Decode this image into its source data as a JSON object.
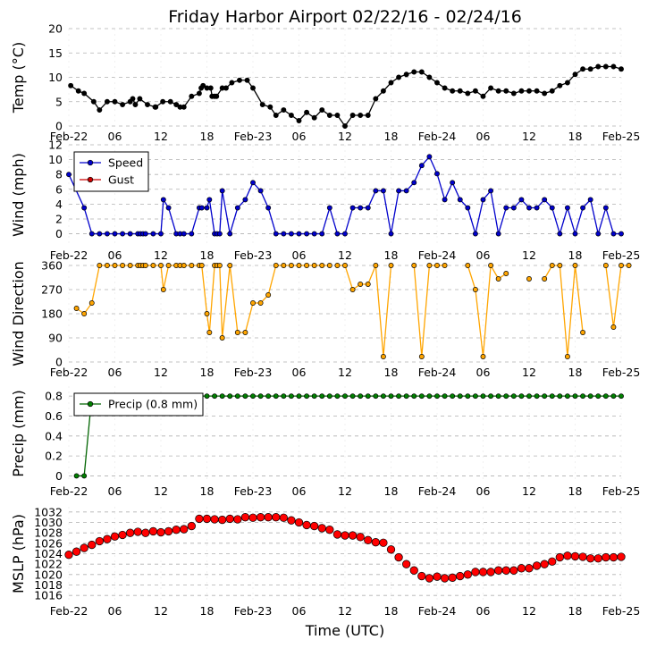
{
  "title": "Friday Harbor Airport 02/22/16 - 02/24/16",
  "xlabel": "Time (UTC)",
  "x_ticks": [
    "Feb-22",
    "06",
    "12",
    "18",
    "Feb-23",
    "06",
    "12",
    "18",
    "Feb-24",
    "06",
    "12",
    "18",
    "Feb-25"
  ],
  "x_range_hours": [
    0,
    72
  ],
  "chart_data": [
    {
      "type": "line",
      "ylabel": "Temp (°C)",
      "ylim": [
        0,
        20
      ],
      "yticks": [
        0,
        5,
        10,
        15,
        20
      ],
      "grid": true,
      "series": [
        {
          "color": "#000000",
          "marker_color": "#000000",
          "x": [
            0.25,
            1.25,
            2.0,
            3.25,
            4.0,
            5.0,
            6.0,
            7.0,
            8.0,
            8.33,
            8.67,
            9.25,
            10.25,
            11.25,
            11.33,
            12.25,
            13.25,
            14.0,
            14.5,
            15.0,
            16.0,
            17.0,
            17.25,
            17.5,
            18.0,
            18.5,
            18.67,
            19.0,
            19.25,
            20.0,
            20.5,
            21.25,
            22.25,
            23.25,
            24.0,
            25.25,
            26.25,
            27.0,
            28.0,
            29.0,
            30.0,
            31.0,
            32.0,
            33.0,
            34.0,
            35.0,
            36.0,
            37.0,
            38.0,
            39.0,
            40.0,
            41.0,
            42.0,
            43.0,
            44.0,
            45.0,
            46.0,
            47.0,
            48.0,
            49.0,
            50.0,
            51.0,
            52.0,
            53.0,
            54.0,
            55.0,
            56.0,
            57.0,
            58.0,
            59.0,
            60.0,
            61.0,
            62.0,
            63.0,
            64.0,
            65.0,
            66.0,
            67.0,
            68.0,
            69.0,
            70.0,
            71.0,
            72.0
          ],
          "y": [
            8.3,
            7.2,
            6.7,
            5.0,
            3.3,
            5.0,
            5.0,
            4.4,
            5.0,
            5.6,
            4.4,
            5.6,
            4.4,
            3.9,
            3.9,
            5.0,
            5.0,
            4.4,
            3.9,
            3.9,
            6.1,
            6.7,
            7.8,
            8.3,
            7.8,
            7.8,
            6.1,
            6.1,
            6.1,
            7.8,
            7.8,
            8.9,
            9.4,
            9.4,
            7.8,
            4.4,
            3.9,
            2.2,
            3.3,
            2.2,
            1.1,
            2.8,
            1.7,
            3.3,
            2.2,
            2.2,
            0.0,
            2.2,
            2.2,
            2.2,
            5.6,
            7.2,
            8.9,
            10.0,
            10.6,
            11.1,
            11.1,
            10.0,
            8.9,
            7.8,
            7.2,
            7.2,
            6.7,
            7.2,
            6.1,
            7.8,
            7.2,
            7.2,
            6.7,
            7.2,
            7.2,
            7.2,
            6.7,
            7.2,
            8.3,
            8.9,
            10.6,
            11.7,
            11.7,
            12.2,
            12.2,
            12.2,
            11.7
          ]
        }
      ]
    },
    {
      "type": "line",
      "ylabel": "Wind (mph)",
      "ylim": [
        -1.5,
        12
      ],
      "yticks": [
        0,
        2,
        4,
        6,
        8,
        10,
        12
      ],
      "grid": true,
      "legend": "top-left",
      "series": [
        {
          "name": "Speed",
          "color": "#0000cc",
          "marker_color": "#0000cc",
          "x": [
            0.0,
            2.0,
            3.0,
            4.0,
            5.0,
            6.0,
            7.0,
            8.0,
            9.0,
            9.33,
            9.67,
            10.0,
            11.0,
            12.0,
            12.33,
            13.0,
            14.0,
            14.5,
            15.0,
            16.0,
            17.0,
            17.33,
            18.0,
            18.33,
            19.0,
            19.33,
            19.67,
            20.0,
            21.0,
            22.0,
            23.0,
            24.0,
            25.0,
            26.0,
            27.0,
            28.0,
            29.0,
            30.0,
            31.0,
            32.0,
            33.0,
            34.0,
            35.0,
            36.0,
            37.0,
            38.0,
            39.0,
            40.0,
            41.0,
            42.0,
            43.0,
            44.0,
            45.0,
            46.0,
            47.0,
            48.0,
            49.0,
            50.0,
            51.0,
            52.0,
            53.0,
            54.0,
            55.0,
            56.0,
            57.0,
            58.0,
            59.0,
            60.0,
            61.0,
            62.0,
            63.0,
            64.0,
            65.0,
            66.0,
            67.0,
            68.0,
            69.0,
            70.0,
            71.0,
            72.0
          ],
          "y": [
            8.0,
            3.5,
            0,
            0,
            0,
            0,
            0,
            0,
            0,
            0,
            0,
            0,
            0,
            0,
            4.6,
            3.5,
            0,
            0,
            0,
            0,
            3.5,
            3.5,
            3.5,
            4.6,
            0,
            0,
            0,
            5.8,
            0,
            3.5,
            4.6,
            6.9,
            5.8,
            3.5,
            0,
            0,
            0,
            0,
            0,
            0,
            0,
            3.5,
            0,
            0,
            3.5,
            3.5,
            3.5,
            5.8,
            5.8,
            0,
            5.8,
            5.8,
            6.9,
            9.2,
            10.4,
            8.1,
            4.6,
            6.9,
            4.6,
            3.5,
            0,
            4.6,
            5.8,
            0,
            3.5,
            3.5,
            4.6,
            3.5,
            3.5,
            4.6,
            3.5,
            0,
            3.5,
            0,
            3.5,
            4.6,
            0,
            3.5,
            0,
            0
          ]
        },
        {
          "name": "Gust",
          "color": "#cc0000",
          "marker_color": "#cc0000",
          "x": [],
          "y": []
        }
      ]
    },
    {
      "type": "line",
      "ylabel": "Wind Direction",
      "ylim": [
        0,
        360
      ],
      "yticks": [
        0,
        90,
        180,
        270,
        360
      ],
      "grid": true,
      "series": [
        {
          "color": "#ffa500",
          "marker_color": "#ffa500",
          "x": [
            1.0,
            2.0,
            3.0,
            4.0,
            5.0,
            6.0,
            7.0,
            8.0,
            9.0,
            9.33,
            9.67,
            10.0,
            11.0,
            12.0,
            12.33,
            13.0,
            14.0,
            14.5,
            15.0,
            16.0,
            17.0,
            17.33,
            18.0,
            18.33,
            19.0,
            19.33,
            19.67,
            20.0,
            21.0,
            22.0,
            23.0,
            24.0,
            25.0,
            26.0,
            27.0,
            28.0,
            29.0,
            30.0,
            31.0,
            32.0,
            33.0,
            34.0,
            null,
            35.0,
            36.0,
            37.0,
            38.0,
            39.0,
            40.0,
            41.0,
            42.0,
            null,
            45.0,
            46.0,
            47.0,
            48.0,
            49.0,
            null,
            52.0,
            53.0,
            54.0,
            55.0,
            56.0,
            57.0,
            58.0,
            null,
            60.0,
            null,
            62.0,
            63.0,
            64.0,
            65.0,
            66.0,
            67.0,
            68.0,
            null,
            70.0,
            71.0,
            72.0,
            73.0
          ],
          "y": [
            200,
            180,
            220,
            360,
            360,
            360,
            360,
            360,
            360,
            360,
            360,
            360,
            360,
            360,
            270,
            360,
            360,
            360,
            360,
            360,
            360,
            360,
            180,
            110,
            360,
            360,
            360,
            90,
            360,
            110,
            110,
            220,
            220,
            250,
            360,
            360,
            360,
            360,
            360,
            360,
            360,
            360,
            null,
            360,
            360,
            270,
            290,
            290,
            360,
            20,
            360,
            null,
            360,
            20,
            360,
            360,
            360,
            null,
            360,
            270,
            20,
            360,
            310,
            330,
            null,
            null,
            310,
            null,
            310,
            360,
            360,
            20,
            360,
            110,
            null,
            null,
            360,
            130,
            360,
            360
          ]
        }
      ]
    },
    {
      "type": "line",
      "ylabel": "Precip (mm)",
      "ylim": [
        -0.05,
        0.9
      ],
      "yticks": [
        0.0,
        0.2,
        0.4,
        0.6,
        0.8
      ],
      "grid": true,
      "legend": "top-left",
      "series": [
        {
          "name": "Precip (0.8 mm)",
          "color": "#006400",
          "marker_color": "#008000",
          "x": [
            1.0,
            2.0,
            3.0,
            4.0,
            5.0,
            6.0,
            7.0,
            8.0,
            9.0,
            10.0,
            11.0,
            12.0,
            13.0,
            14.0,
            15.0,
            16.0,
            17.0,
            18.0,
            19.0,
            20.0,
            21.0,
            22.0,
            23.0,
            24.0,
            25.0,
            26.0,
            27.0,
            28.0,
            29.0,
            30.0,
            31.0,
            32.0,
            33.0,
            34.0,
            35.0,
            36.0,
            37.0,
            38.0,
            39.0,
            40.0,
            41.0,
            42.0,
            43.0,
            44.0,
            45.0,
            46.0,
            47.0,
            48.0,
            49.0,
            50.0,
            51.0,
            52.0,
            53.0,
            54.0,
            55.0,
            56.0,
            57.0,
            58.0,
            59.0,
            60.0,
            61.0,
            62.0,
            63.0,
            64.0,
            65.0,
            66.0,
            67.0,
            68.0,
            69.0,
            70.0,
            71.0,
            72.0
          ],
          "y": [
            0.0,
            0.0,
            0.8,
            0.8,
            0.8,
            0.8,
            0.8,
            0.8,
            0.8,
            0.8,
            0.8,
            0.8,
            0.8,
            0.8,
            0.8,
            0.8,
            0.8,
            0.8,
            0.8,
            0.8,
            0.8,
            0.8,
            0.8,
            0.8,
            0.8,
            0.8,
            0.8,
            0.8,
            0.8,
            0.8,
            0.8,
            0.8,
            0.8,
            0.8,
            0.8,
            0.8,
            0.8,
            0.8,
            0.8,
            0.8,
            0.8,
            0.8,
            0.8,
            0.8,
            0.8,
            0.8,
            0.8,
            0.8,
            0.8,
            0.8,
            0.8,
            0.8,
            0.8,
            0.8,
            0.8,
            0.8,
            0.8,
            0.8,
            0.8,
            0.8,
            0.8,
            0.8,
            0.8,
            0.8,
            0.8,
            0.8,
            0.8,
            0.8,
            0.8,
            0.8,
            0.8,
            0.8
          ]
        }
      ]
    },
    {
      "type": "scatter",
      "ylabel": "MSLP (hPa)",
      "ylim": [
        1015,
        1033
      ],
      "yticks": [
        1016,
        1018,
        1020,
        1022,
        1024,
        1026,
        1028,
        1030,
        1032
      ],
      "grid": true,
      "series": [
        {
          "color": "#ff0000",
          "marker_color": "#ff0000",
          "x": [
            0,
            1,
            2,
            3,
            4,
            5,
            6,
            7,
            8,
            9,
            10,
            11,
            12,
            13,
            14,
            15,
            16,
            17,
            18,
            19,
            20,
            21,
            22,
            23,
            24,
            25,
            26,
            27,
            28,
            29,
            30,
            31,
            32,
            33,
            34,
            35,
            36,
            37,
            38,
            39,
            40,
            41,
            42,
            43,
            44,
            45,
            46,
            47,
            48,
            49,
            50,
            51,
            52,
            53,
            54,
            55,
            56,
            57,
            58,
            59,
            60,
            61,
            62,
            63,
            64,
            65,
            66,
            67,
            68,
            69,
            70,
            71,
            72
          ],
          "y": [
            1023.8,
            1024.4,
            1025.1,
            1025.7,
            1026.4,
            1026.8,
            1027.3,
            1027.6,
            1028.0,
            1028.2,
            1028.0,
            1028.3,
            1028.1,
            1028.3,
            1028.6,
            1028.7,
            1029.3,
            1030.7,
            1030.7,
            1030.6,
            1030.5,
            1030.7,
            1030.6,
            1031.0,
            1030.9,
            1031.0,
            1031.0,
            1031.0,
            1030.9,
            1030.4,
            1030.0,
            1029.5,
            1029.3,
            1028.9,
            1028.6,
            1027.7,
            1027.5,
            1027.5,
            1027.2,
            1026.6,
            1026.2,
            1026.1,
            1024.8,
            1023.3,
            1022.0,
            1020.8,
            1019.7,
            1019.3,
            1019.6,
            1019.3,
            1019.4,
            1019.7,
            1020.0,
            1020.5,
            1020.5,
            1020.5,
            1020.8,
            1020.8,
            1020.8,
            1021.2,
            1021.2,
            1021.7,
            1022.0,
            1022.5,
            1023.3,
            1023.6,
            1023.5,
            1023.4,
            1023.1,
            1023.1,
            1023.3,
            1023.3,
            1023.4
          ]
        }
      ]
    }
  ]
}
